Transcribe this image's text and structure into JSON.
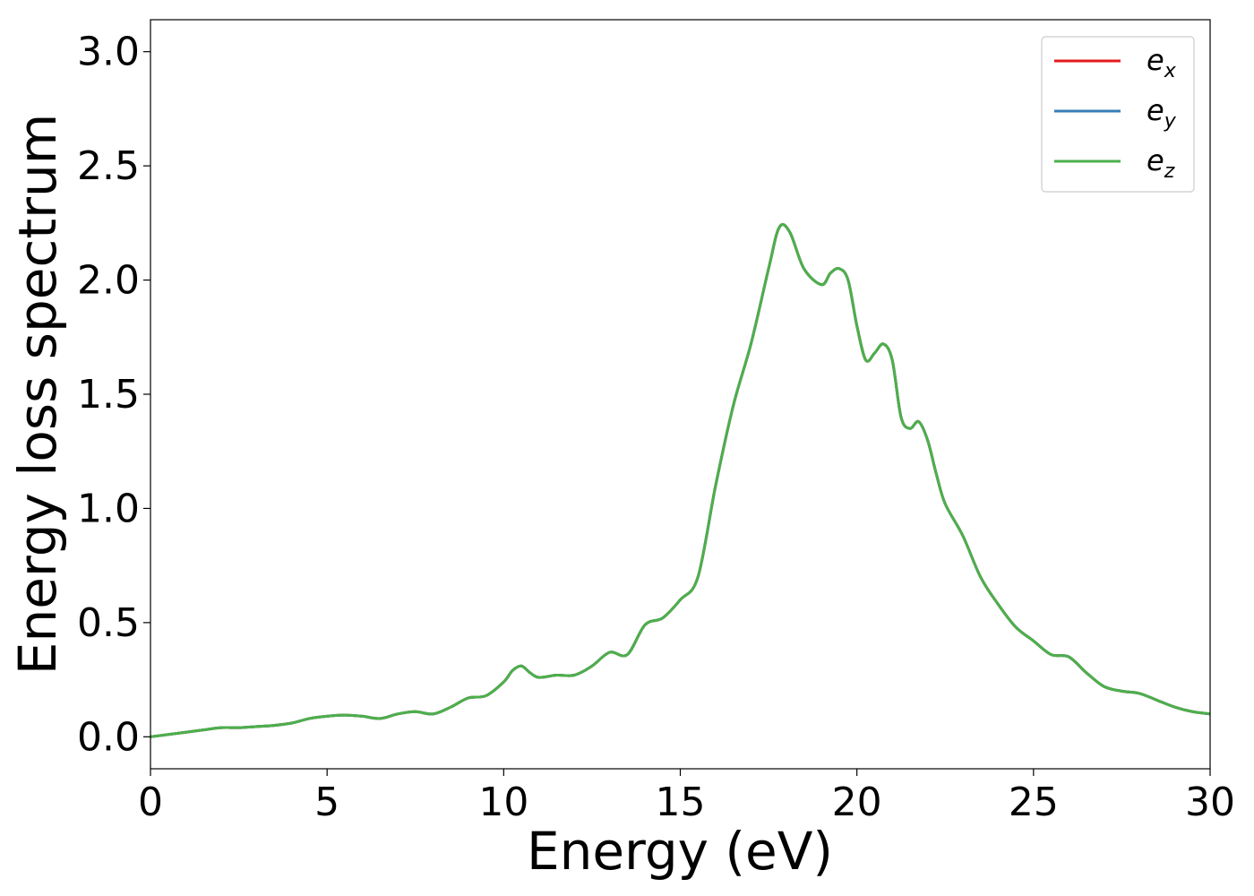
{
  "chart_data": {
    "type": "line",
    "title": "",
    "xlabel": "Energy (eV)",
    "ylabel": "Energy loss spectrum",
    "xlim": [
      0,
      30
    ],
    "ylim": [
      -0.14,
      3.14
    ],
    "xticks": [
      "0",
      "5",
      "10",
      "15",
      "20",
      "25",
      "30"
    ],
    "yticks": [
      "0.0",
      "0.5",
      "1.0",
      "1.5",
      "2.0",
      "2.5",
      "3.0"
    ],
    "xtick_values": [
      0,
      5,
      10,
      15,
      20,
      25,
      30
    ],
    "ytick_values": [
      0.0,
      0.5,
      1.0,
      1.5,
      2.0,
      2.5,
      3.0
    ],
    "grid": false,
    "legend_position": "top-right",
    "x": [
      0,
      0.5,
      1,
      1.5,
      2,
      2.5,
      3,
      3.5,
      4,
      4.5,
      5,
      5.5,
      6,
      6.5,
      7,
      7.5,
      8,
      8.5,
      9,
      9.5,
      10,
      10.25,
      10.5,
      10.75,
      11,
      11.5,
      12,
      12.5,
      13,
      13.5,
      14,
      14.5,
      15,
      15.5,
      16,
      16.5,
      17,
      17.5,
      17.8,
      18.1,
      18.5,
      19,
      19.25,
      19.5,
      19.75,
      20,
      20.25,
      20.5,
      20.75,
      21,
      21.25,
      21.5,
      21.75,
      22,
      22.25,
      22.5,
      23,
      23.5,
      24,
      24.5,
      25,
      25.5,
      26,
      26.5,
      27,
      27.5,
      28,
      28.5,
      29,
      29.5,
      30
    ],
    "series": [
      {
        "name_base": "e",
        "name_sub": "x",
        "color": "#e41a1c",
        "values": [
          0.0,
          0.01,
          0.02,
          0.03,
          0.04,
          0.04,
          0.045,
          0.05,
          0.06,
          0.08,
          0.09,
          0.095,
          0.09,
          0.08,
          0.1,
          0.11,
          0.1,
          0.13,
          0.17,
          0.18,
          0.24,
          0.29,
          0.31,
          0.28,
          0.26,
          0.27,
          0.27,
          0.31,
          0.37,
          0.36,
          0.49,
          0.52,
          0.6,
          0.7,
          1.1,
          1.45,
          1.72,
          2.05,
          2.23,
          2.21,
          2.05,
          1.98,
          2.03,
          2.05,
          2.0,
          1.8,
          1.65,
          1.68,
          1.72,
          1.65,
          1.4,
          1.35,
          1.38,
          1.3,
          1.15,
          1.02,
          0.88,
          0.7,
          0.58,
          0.48,
          0.42,
          0.36,
          0.35,
          0.28,
          0.22,
          0.2,
          0.19,
          0.16,
          0.13,
          0.11,
          0.1
        ]
      },
      {
        "name_base": "e",
        "name_sub": "y",
        "color": "#377eb8",
        "values": [
          0.0,
          0.01,
          0.02,
          0.03,
          0.04,
          0.04,
          0.045,
          0.05,
          0.06,
          0.08,
          0.09,
          0.095,
          0.09,
          0.08,
          0.1,
          0.11,
          0.1,
          0.13,
          0.17,
          0.18,
          0.24,
          0.29,
          0.31,
          0.28,
          0.26,
          0.27,
          0.27,
          0.31,
          0.37,
          0.36,
          0.49,
          0.52,
          0.6,
          0.7,
          1.1,
          1.45,
          1.72,
          2.05,
          2.23,
          2.21,
          2.05,
          1.98,
          2.03,
          2.05,
          2.0,
          1.8,
          1.65,
          1.68,
          1.72,
          1.65,
          1.4,
          1.35,
          1.38,
          1.3,
          1.15,
          1.02,
          0.88,
          0.7,
          0.58,
          0.48,
          0.42,
          0.36,
          0.35,
          0.28,
          0.22,
          0.2,
          0.19,
          0.16,
          0.13,
          0.11,
          0.1
        ]
      },
      {
        "name_base": "e",
        "name_sub": "z",
        "color": "#4daf4a",
        "values": [
          0.0,
          0.01,
          0.02,
          0.03,
          0.04,
          0.04,
          0.045,
          0.05,
          0.06,
          0.08,
          0.09,
          0.095,
          0.09,
          0.08,
          0.1,
          0.11,
          0.1,
          0.13,
          0.17,
          0.18,
          0.24,
          0.29,
          0.31,
          0.28,
          0.26,
          0.27,
          0.27,
          0.31,
          0.37,
          0.36,
          0.49,
          0.52,
          0.6,
          0.7,
          1.1,
          1.45,
          1.72,
          2.05,
          2.23,
          2.21,
          2.05,
          1.98,
          2.03,
          2.05,
          2.0,
          1.8,
          1.65,
          1.68,
          1.72,
          1.65,
          1.4,
          1.35,
          1.38,
          1.3,
          1.15,
          1.02,
          0.88,
          0.7,
          0.58,
          0.48,
          0.42,
          0.36,
          0.35,
          0.28,
          0.22,
          0.2,
          0.19,
          0.16,
          0.13,
          0.11,
          0.1
        ]
      }
    ]
  }
}
